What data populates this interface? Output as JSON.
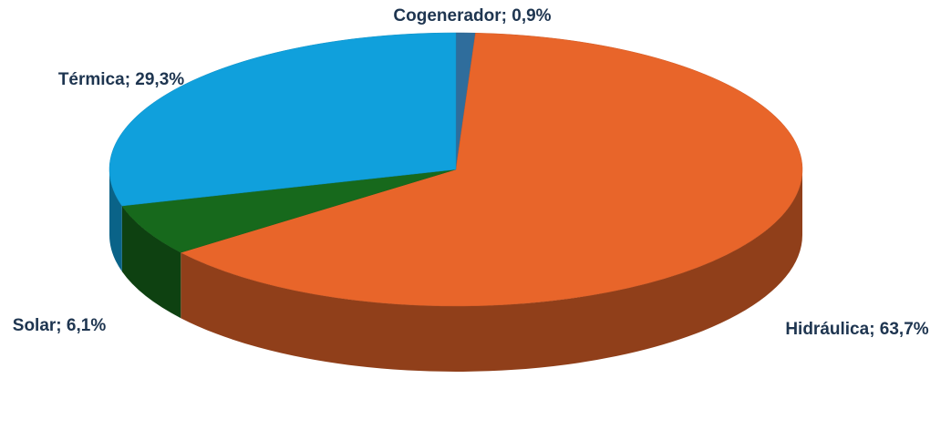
{
  "chart_data": {
    "type": "pie",
    "categories": [
      "Cogenerador",
      "Hidráulica",
      "Solar",
      "Térmica"
    ],
    "values": [
      0.9,
      63.7,
      6.1,
      29.3
    ],
    "value_labels": [
      "0,9%",
      "63,7%",
      "6,1%",
      "29,3%"
    ],
    "label_separator": "; ",
    "colors": [
      "#2f6d9c",
      "#e8652a",
      "#17691c",
      "#10a0dc"
    ]
  }
}
